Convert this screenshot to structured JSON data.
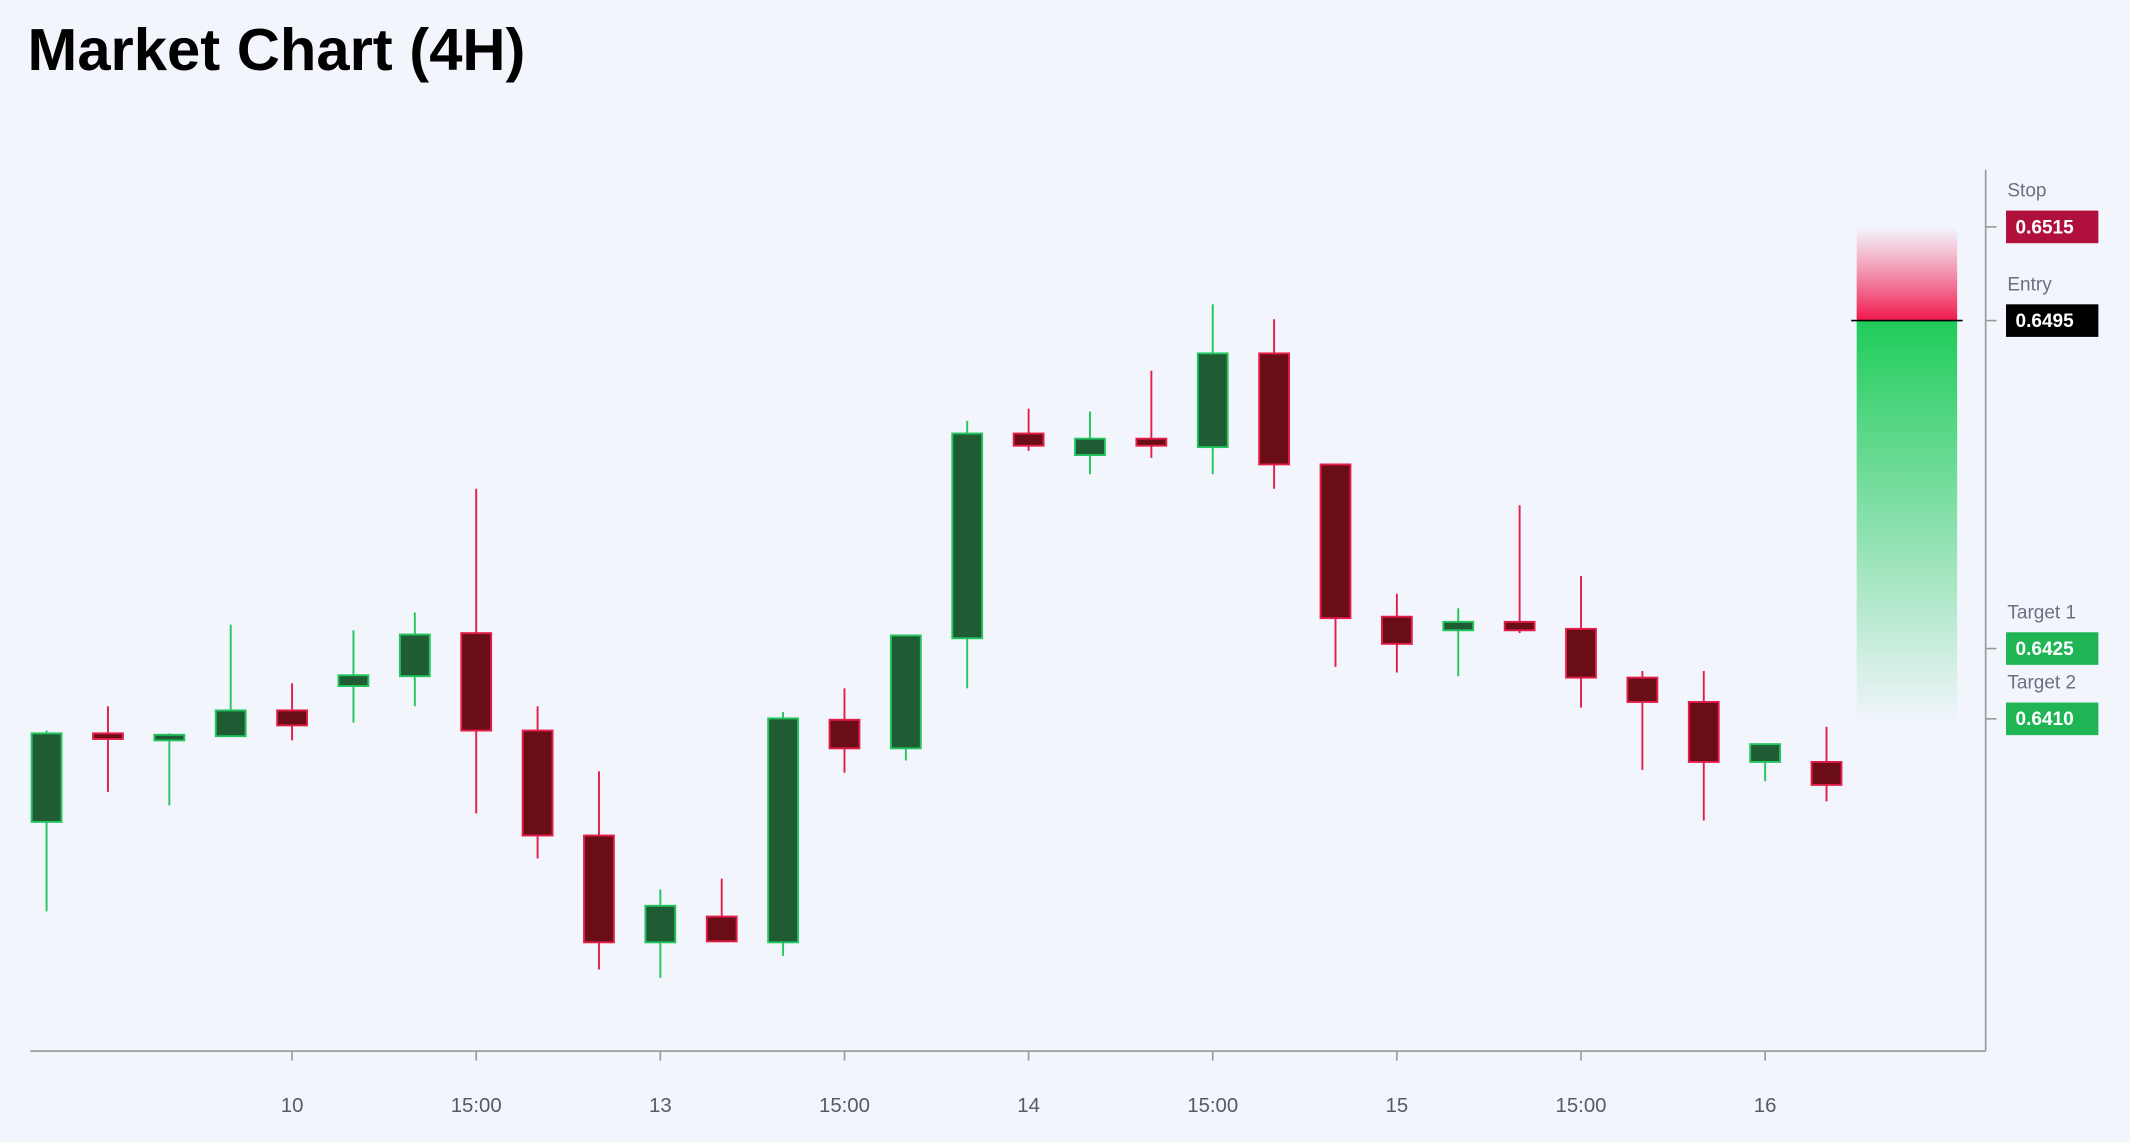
{
  "chart_data": {
    "type": "candlestick",
    "title": "Market Chart (4H)",
    "categories": [
      null,
      null,
      null,
      null,
      "10",
      null,
      null,
      "15:00",
      null,
      null,
      "13",
      null,
      null,
      "15:00",
      null,
      null,
      "14",
      null,
      null,
      "15:00",
      null,
      null,
      "15",
      null,
      null,
      "15:00",
      null,
      null,
      "16",
      null
    ],
    "open": [
      0.6388,
      0.64069,
      0.64054,
      0.64063,
      0.64118,
      0.6417,
      0.64191,
      0.64283,
      0.64075,
      0.63851,
      0.63623,
      0.63678,
      0.63623,
      0.64098,
      0.64037,
      0.64272,
      0.64709,
      0.64663,
      0.64698,
      0.6468,
      0.6488,
      0.64643,
      0.64318,
      0.64289,
      0.64307,
      0.64292,
      0.64188,
      0.64136,
      0.64008,
      0.64008
    ],
    "high": [
      0.64075,
      0.64127,
      0.64069,
      0.64301,
      0.64176,
      0.64289,
      0.64327,
      0.64591,
      0.64127,
      0.63988,
      0.63736,
      0.63759,
      0.64115,
      0.64165,
      0.64278,
      0.64736,
      0.64762,
      0.64756,
      0.64843,
      0.64985,
      0.64953,
      0.64643,
      0.64367,
      0.64336,
      0.64556,
      0.64405,
      0.64202,
      0.64202,
      0.64046,
      0.64083
    ],
    "low": [
      0.63689,
      0.63944,
      0.63915,
      0.64063,
      0.64054,
      0.64092,
      0.64127,
      0.63898,
      0.63802,
      0.63565,
      0.63547,
      0.63625,
      0.63594,
      0.63985,
      0.64011,
      0.64165,
      0.64672,
      0.64622,
      0.64657,
      0.64622,
      0.64591,
      0.64211,
      0.64199,
      0.64191,
      0.64283,
      0.64124,
      0.63991,
      0.63883,
      0.63967,
      0.63924
    ],
    "close": [
      0.64069,
      0.64057,
      0.64066,
      0.64118,
      0.64086,
      0.64193,
      0.6428,
      0.64075,
      0.63851,
      0.63623,
      0.63701,
      0.63625,
      0.64101,
      0.64037,
      0.64278,
      0.64709,
      0.64683,
      0.64698,
      0.64683,
      0.6488,
      0.64643,
      0.64315,
      0.6426,
      0.64307,
      0.64289,
      0.64188,
      0.64136,
      0.64008,
      0.64046,
      0.63959
    ],
    "up_color": "#1f5c33",
    "up_edge": "#22c55e",
    "down_color": "#6b0d16",
    "down_edge": "#e11d48",
    "ylim": [
      0.63391,
      0.65272
    ],
    "levels": [
      {
        "name": "Stop",
        "value": 0.6515,
        "value_label": "0.6515",
        "color": "#b0103c"
      },
      {
        "name": "Entry",
        "value": 0.6495,
        "value_label": "0.6495",
        "color": "#000000"
      },
      {
        "name": "Target 1",
        "value": 0.6425,
        "value_label": "0.6425",
        "color": "#1fb454"
      },
      {
        "name": "Target 2",
        "value": 0.641,
        "value_label": "0.6410",
        "color": "#1fb454"
      }
    ]
  }
}
